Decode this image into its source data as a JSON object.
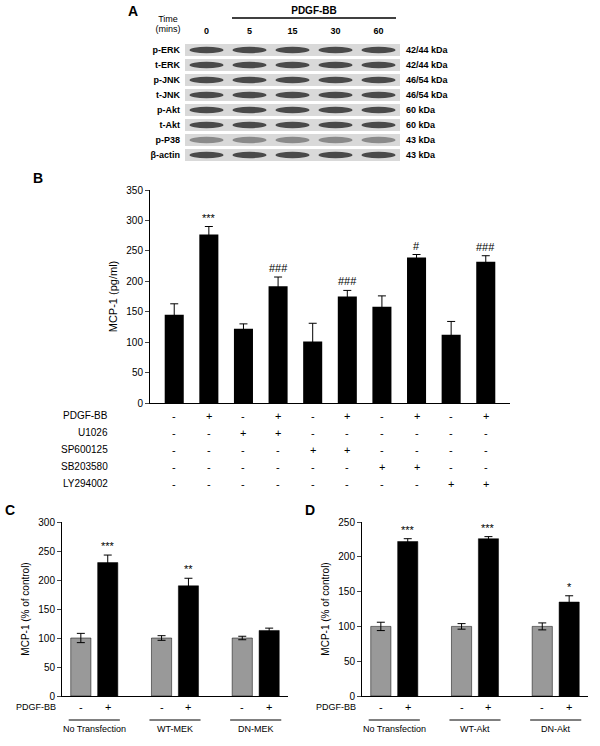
{
  "blot": {
    "label": "A",
    "time_label": "Time (mins)",
    "treatment": "PDGF-BB",
    "times": [
      "0",
      "5",
      "15",
      "30",
      "60"
    ],
    "rows": [
      {
        "name": "p-ERK",
        "size": "42/44 kDa"
      },
      {
        "name": "t-ERK",
        "size": "42/44 kDa"
      },
      {
        "name": "p-JNK",
        "size": "46/54 kDa"
      },
      {
        "name": "t-JNK",
        "size": "46/54 kDa"
      },
      {
        "name": "p-Akt",
        "size": "60 kDa"
      },
      {
        "name": "t-Akt",
        "size": "60 kDa"
      },
      {
        "name": "p-P38",
        "size": "43 kDa"
      },
      {
        "name": "β-actin",
        "size": "43 kDa"
      }
    ]
  },
  "chart_data": [
    {
      "type": "bar",
      "title": "B",
      "y_label": "MCP-1 (pg/ml)",
      "categories": [
        null,
        null,
        null,
        null,
        null,
        null,
        null,
        null,
        null,
        null
      ],
      "values": [
        145,
        277,
        122,
        192,
        101,
        175,
        158,
        239,
        112,
        232
      ],
      "errors": [
        18,
        13,
        8,
        15,
        30,
        10,
        18,
        5,
        22,
        10
      ],
      "color": "#000000",
      "ylim": [
        0,
        350
      ],
      "yticks": [
        0,
        50,
        100,
        150,
        200,
        250,
        300,
        350
      ],
      "grid": false,
      "annotations": [
        {
          "x": 1,
          "text": "***"
        },
        {
          "x": 3,
          "text": "###"
        },
        {
          "x": 5,
          "text": "###"
        },
        {
          "x": 7,
          "text": "#"
        },
        {
          "x": 9,
          "text": "###"
        }
      ],
      "treatments": [
        {
          "name": "PDGF-BB",
          "signs": [
            "-",
            "+",
            "-",
            "+",
            "-",
            "+",
            "-",
            "+",
            "-",
            "+"
          ]
        },
        {
          "name": "U1026",
          "signs": [
            "-",
            "-",
            "+",
            "+",
            "-",
            "-",
            "-",
            "-",
            "-",
            "-"
          ]
        },
        {
          "name": "SP600125",
          "signs": [
            "-",
            "-",
            "-",
            "-",
            "+",
            "+",
            "-",
            "-",
            "-",
            "-"
          ]
        },
        {
          "name": "SB203580",
          "signs": [
            "-",
            "-",
            "-",
            "-",
            "-",
            "-",
            "+",
            "+",
            "-",
            "-"
          ]
        },
        {
          "name": "LY294002",
          "signs": [
            "-",
            "-",
            "-",
            "-",
            "-",
            "-",
            "-",
            "-",
            "+",
            "+"
          ]
        }
      ]
    },
    {
      "type": "bar",
      "title": "C",
      "y_label": "MCP-1 (% of control)",
      "row_label": "PDGF-BB",
      "categories": [
        "No Transfection",
        "WT-MEK",
        "DN-MEK"
      ],
      "series": [
        {
          "name": "-",
          "color": "#999999",
          "values": [
            100,
            100,
            100
          ],
          "errors": [
            8,
            4,
            3
          ]
        },
        {
          "name": "+",
          "color": "#000000",
          "values": [
            230,
            190,
            113
          ],
          "errors": [
            13,
            13,
            4
          ]
        }
      ],
      "ylim": [
        0,
        300
      ],
      "yticks": [
        0,
        50,
        100,
        150,
        200,
        250,
        300
      ],
      "grid": false,
      "annotations": [
        {
          "x": 0,
          "series": 1,
          "text": "***"
        },
        {
          "x": 1,
          "series": 1,
          "text": "**"
        }
      ]
    },
    {
      "type": "bar",
      "title": "D",
      "y_label": "MCP-1 (% of control)",
      "row_label": "PDGF-BB",
      "categories": [
        "No Transfection",
        "WT-Akt",
        "DN-Akt"
      ],
      "series": [
        {
          "name": "-",
          "color": "#999999",
          "values": [
            100,
            100,
            100
          ],
          "errors": [
            6,
            4,
            5
          ]
        },
        {
          "name": "+",
          "color": "#000000",
          "values": [
            222,
            226,
            135
          ],
          "errors": [
            4,
            3,
            9
          ]
        }
      ],
      "ylim": [
        0,
        250
      ],
      "yticks": [
        0,
        50,
        100,
        150,
        200,
        250
      ],
      "grid": false,
      "annotations": [
        {
          "x": 0,
          "series": 1,
          "text": "***"
        },
        {
          "x": 1,
          "series": 1,
          "text": "***"
        },
        {
          "x": 2,
          "series": 1,
          "text": "*"
        }
      ]
    }
  ]
}
